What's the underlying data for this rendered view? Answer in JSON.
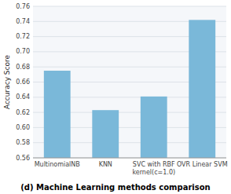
{
  "chart_data": {
    "type": "bar",
    "title": "(d) Machine Learning methods comparison",
    "ylabel": "Accuracy Score",
    "categories": [
      "MultinomialNB",
      "KNN",
      "SVC with RBF\nkernel(c=1.0)",
      "OVR Linear SVM"
    ],
    "values": [
      0.675,
      0.623,
      0.641,
      0.742
    ],
    "color": "#7ab8d9",
    "ylim": [
      0.56,
      0.76
    ],
    "yticks": [
      0.56,
      0.58,
      {
        "value": 0.6,
        "label": "0.60"
      },
      0.62,
      0.64,
      0.66,
      0.68,
      {
        "value": 0.7,
        "label": "0.70"
      },
      0.72,
      0.74,
      0.76
    ],
    "grid": true
  }
}
